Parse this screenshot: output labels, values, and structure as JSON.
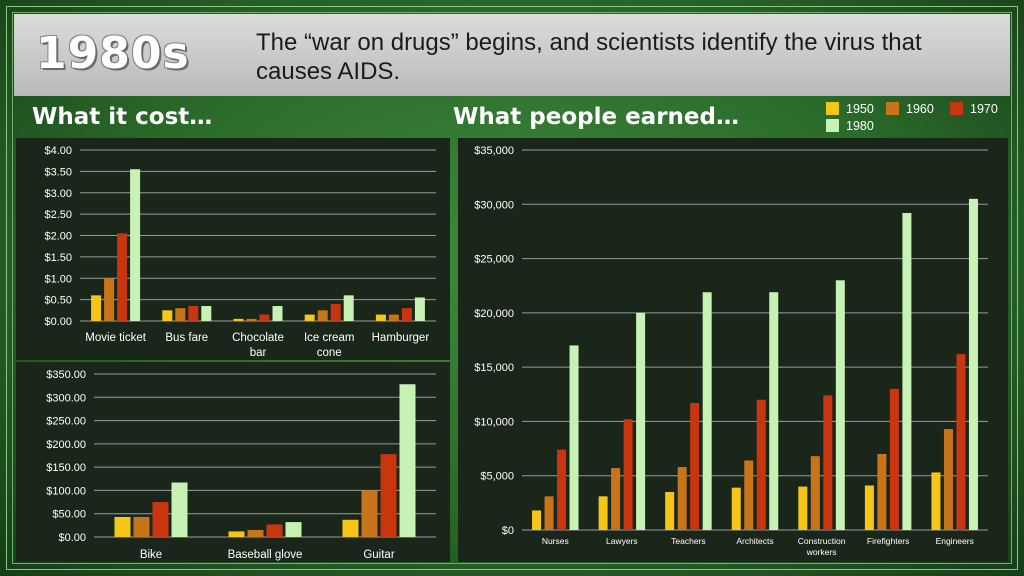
{
  "header": {
    "era": "1980s",
    "headline": "The “war on drugs” begins, and scientists identify the virus that causes AIDS."
  },
  "sections": {
    "cost_title": "What it cost…",
    "earned_title": "What people earned…"
  },
  "legend": [
    {
      "label": "1950",
      "color": "#f5c518"
    },
    {
      "label": "1960",
      "color": "#c8741a"
    },
    {
      "label": "1970",
      "color": "#c8350f"
    },
    {
      "label": "1980",
      "color": "#c6f3b4"
    }
  ],
  "chart_data": [
    {
      "type": "bar",
      "categories": [
        "Movie ticket",
        "Bus fare",
        "Chocolate bar",
        "Ice cream cone",
        "Hamburger"
      ],
      "category_lines": [
        [
          "Movie ticket"
        ],
        [
          "Bus fare"
        ],
        [
          "Chocolate",
          "bar"
        ],
        [
          "Ice cream",
          "cone"
        ],
        [
          "Hamburger"
        ]
      ],
      "series": [
        {
          "name": "1950",
          "values": [
            0.6,
            0.25,
            0.05,
            0.15,
            0.15
          ]
        },
        {
          "name": "1960",
          "values": [
            1.0,
            0.3,
            0.05,
            0.25,
            0.15
          ]
        },
        {
          "name": "1970",
          "values": [
            2.05,
            0.35,
            0.15,
            0.4,
            0.3
          ]
        },
        {
          "name": "1980",
          "values": [
            3.55,
            0.35,
            0.35,
            0.6,
            0.55
          ]
        }
      ],
      "ylim": [
        0,
        4
      ],
      "yticks": [
        0,
        0.5,
        1,
        1.5,
        2,
        2.5,
        3,
        3.5,
        4
      ],
      "ytick_labels": [
        "$0.00",
        "$0.50",
        "$1.00",
        "$1.50",
        "$2.00",
        "$2.50",
        "$3.00",
        "$3.50",
        "$4.00"
      ],
      "grid": true
    },
    {
      "type": "bar",
      "categories": [
        "Bike",
        "Baseball glove",
        "Guitar"
      ],
      "category_lines": [
        [
          "Bike"
        ],
        [
          "Baseball glove"
        ],
        [
          "Guitar"
        ]
      ],
      "series": [
        {
          "name": "1950",
          "values": [
            43,
            12,
            37
          ]
        },
        {
          "name": "1960",
          "values": [
            43,
            15,
            100
          ]
        },
        {
          "name": "1970",
          "values": [
            75,
            27,
            178
          ]
        },
        {
          "name": "1980",
          "values": [
            117,
            32,
            328
          ]
        }
      ],
      "ylim": [
        0,
        350
      ],
      "yticks": [
        0,
        50,
        100,
        150,
        200,
        250,
        300,
        350
      ],
      "ytick_labels": [
        "$0.00",
        "$50.00",
        "$100.00",
        "$150.00",
        "$200.00",
        "$250.00",
        "$300.00",
        "$350.00"
      ],
      "grid": true
    },
    {
      "type": "bar",
      "categories": [
        "Nurses",
        "Lawyers",
        "Teachers",
        "Architects",
        "Construction workers",
        "Firefighters",
        "Engineers"
      ],
      "category_lines": [
        [
          "Nurses"
        ],
        [
          "Lawyers"
        ],
        [
          "Teachers"
        ],
        [
          "Architects"
        ],
        [
          "Construction",
          "workers"
        ],
        [
          "Firefighters"
        ],
        [
          "Engineers"
        ]
      ],
      "series": [
        {
          "name": "1950",
          "values": [
            1800,
            3100,
            3500,
            3900,
            4000,
            4100,
            5300
          ]
        },
        {
          "name": "1960",
          "values": [
            3100,
            5700,
            5800,
            6400,
            6800,
            7000,
            9300
          ]
        },
        {
          "name": "1970",
          "values": [
            7400,
            10200,
            11700,
            12000,
            12400,
            13000,
            16200
          ]
        },
        {
          "name": "1980",
          "values": [
            17000,
            20000,
            21900,
            21900,
            23000,
            29200,
            30500
          ]
        }
      ],
      "ylim": [
        0,
        35000
      ],
      "yticks": [
        0,
        5000,
        10000,
        15000,
        20000,
        25000,
        30000,
        35000
      ],
      "ytick_labels": [
        "$0",
        "$5,000",
        "$10,000",
        "$15,000",
        "$20,000",
        "$25,000",
        "$30,000",
        "$35,000"
      ],
      "grid": true,
      "legend": "top-right"
    }
  ]
}
